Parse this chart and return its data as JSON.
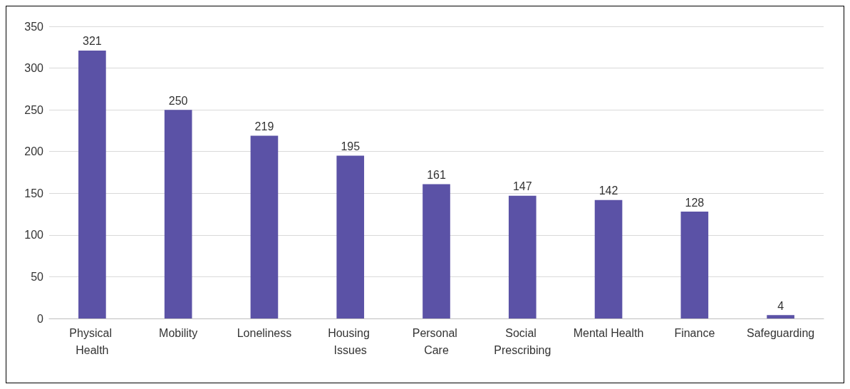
{
  "chart_data": {
    "type": "bar",
    "categories": [
      "Physical Health",
      "Mobility",
      "Loneliness",
      "Housing Issues",
      "Personal Care",
      "Social Prescribing",
      "Mental Health",
      "Finance",
      "Safeguarding"
    ],
    "values": [
      321,
      250,
      219,
      195,
      161,
      147,
      142,
      128,
      4
    ],
    "color": "#5b52a6",
    "ylim": [
      0,
      350
    ],
    "yticks": [
      0,
      50,
      100,
      150,
      200,
      250,
      300,
      350
    ],
    "grid": "y",
    "data_labels": true
  }
}
